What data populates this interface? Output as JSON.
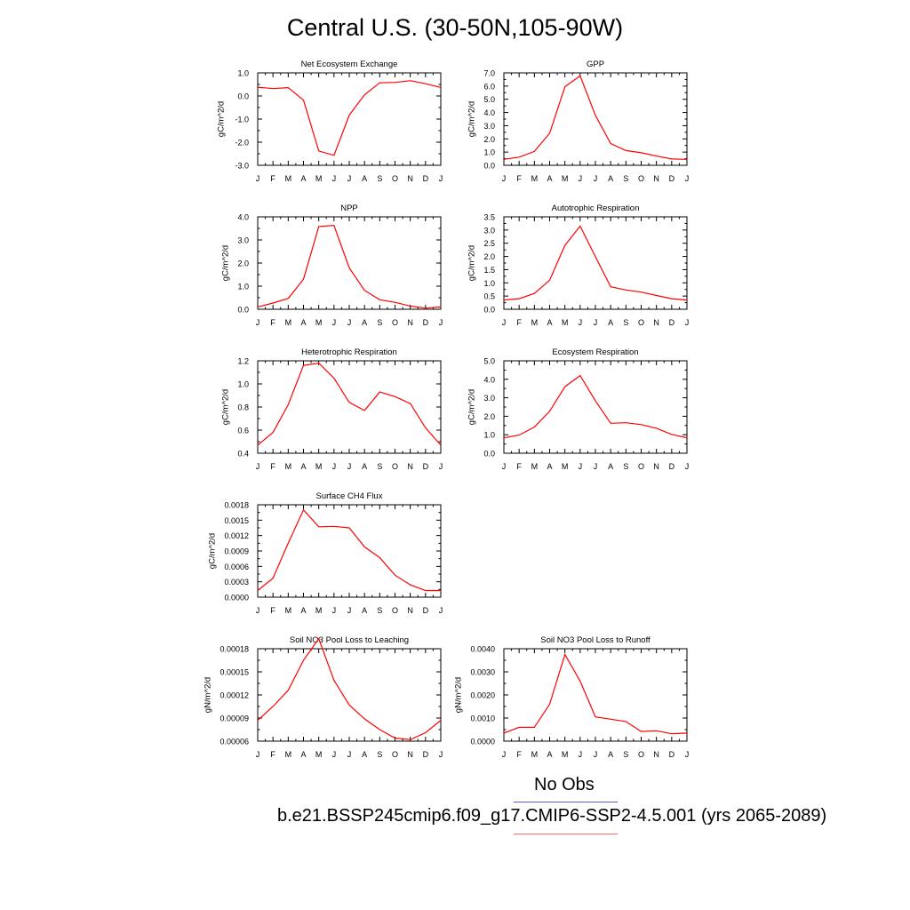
{
  "title": "Central U.S. (30-50N,105-90W)",
  "months": [
    "J",
    "F",
    "M",
    "A",
    "M",
    "J",
    "J",
    "A",
    "S",
    "O",
    "N",
    "D",
    "J"
  ],
  "legend": {
    "obs_label": "No Obs",
    "obs_color": "#5b5bd6",
    "model_label": "b.e21.BSSP245cmip6.f09_g17.CMIP6-SSP2-4.5.001 (yrs 2065-2089)",
    "model_color": "#ff6a6a"
  },
  "line_color": "#ff0000",
  "chart_data": [
    {
      "type": "line",
      "title": "Net Ecosystem Exchange",
      "ylabel": "gC/m^2/d",
      "ylim": [
        -3.0,
        1.0
      ],
      "ytick_values": [
        -3.0,
        -2.0,
        -1.0,
        0.0,
        1.0
      ],
      "yticks": [
        "-3.0",
        "-2.0",
        "-1.0",
        "0.0",
        "1.0"
      ],
      "values": [
        0.38,
        0.32,
        0.36,
        -0.18,
        -2.38,
        -2.57,
        -0.83,
        0.05,
        0.57,
        0.59,
        0.66,
        0.53,
        0.37
      ]
    },
    {
      "type": "line",
      "title": "GPP",
      "ylabel": "gC/m^2/d",
      "ylim": [
        0.0,
        7.0
      ],
      "ytick_values": [
        0,
        1,
        2,
        3,
        4,
        5,
        6,
        7
      ],
      "yticks": [
        "0.0",
        "1.0",
        "2.0",
        "3.0",
        "4.0",
        "5.0",
        "6.0",
        "7.0"
      ],
      "values": [
        0.45,
        0.62,
        1.05,
        2.42,
        5.95,
        6.78,
        3.78,
        1.65,
        1.12,
        0.95,
        0.7,
        0.48,
        0.45
      ]
    },
    {
      "type": "line",
      "title": "NPP",
      "ylabel": "gC/m^2/d",
      "ylim": [
        0.0,
        4.0
      ],
      "ytick_values": [
        0,
        1,
        2,
        3,
        4
      ],
      "yticks": [
        "0.0",
        "1.0",
        "2.0",
        "3.0",
        "4.0"
      ],
      "values": [
        0.1,
        0.27,
        0.47,
        1.3,
        3.58,
        3.63,
        1.79,
        0.82,
        0.41,
        0.3,
        0.14,
        0.05,
        0.1
      ]
    },
    {
      "type": "line",
      "title": "Autotrophic Respiration",
      "ylabel": "gC/m^2/d",
      "ylim": [
        0.0,
        3.5
      ],
      "ytick_values": [
        0,
        0.5,
        1,
        1.5,
        2,
        2.5,
        3,
        3.5
      ],
      "yticks": [
        "0.0",
        "0.5",
        "1.0",
        "1.5",
        "2.0",
        "2.5",
        "3.0",
        "3.5"
      ],
      "values": [
        0.35,
        0.4,
        0.6,
        1.1,
        2.42,
        3.15,
        1.99,
        0.85,
        0.73,
        0.65,
        0.52,
        0.4,
        0.35
      ]
    },
    {
      "type": "line",
      "title": "Heterotrophic Respiration",
      "ylabel": "gC/m^2/d",
      "ylim": [
        0.4,
        1.2
      ],
      "ytick_values": [
        0.4,
        0.6,
        0.8,
        1.0,
        1.2
      ],
      "yticks": [
        "0.4",
        "0.6",
        "0.8",
        "1.0",
        "1.2"
      ],
      "values": [
        0.47,
        0.58,
        0.82,
        1.16,
        1.18,
        1.05,
        0.84,
        0.77,
        0.93,
        0.89,
        0.83,
        0.62,
        0.47
      ]
    },
    {
      "type": "line",
      "title": "Ecosystem Respiration",
      "ylabel": "gC/m^2/d",
      "ylim": [
        0.0,
        5.0
      ],
      "ytick_values": [
        0,
        1,
        2,
        3,
        4,
        5
      ],
      "yticks": [
        "0.0",
        "1.0",
        "2.0",
        "3.0",
        "4.0",
        "5.0"
      ],
      "values": [
        0.83,
        0.98,
        1.42,
        2.27,
        3.6,
        4.2,
        2.83,
        1.62,
        1.65,
        1.55,
        1.35,
        1.02,
        0.83
      ]
    },
    {
      "type": "line",
      "title": "Surface CH4 Flux",
      "ylabel": "gC/m^2/d",
      "ylim": [
        0.0,
        0.0018
      ],
      "ytick_values": [
        0,
        0.0003,
        0.0006,
        0.0009,
        0.0012,
        0.0015,
        0.0018
      ],
      "yticks": [
        "0.0000",
        "0.0003",
        "0.0006",
        "0.0009",
        "0.0012",
        "0.0015",
        "0.0018"
      ],
      "values": [
        0.00013,
        0.00037,
        0.00105,
        0.0017,
        0.00137,
        0.00138,
        0.00135,
        0.00098,
        0.00077,
        0.00043,
        0.00024,
        0.00013,
        0.00013
      ]
    },
    {
      "type": "line",
      "title": "Soil NO3 Pool Loss to Leaching",
      "ylabel": "gN/m^2/d",
      "ylim": [
        6e-05,
        0.00018
      ],
      "ytick_values": [
        6e-05,
        9e-05,
        0.00012,
        0.00015,
        0.00018
      ],
      "yticks": [
        "0.00006",
        "0.00009",
        "0.00012",
        "0.00015",
        "0.00018"
      ],
      "values": [
        8.7e-05,
        0.000105,
        0.000126,
        0.000165,
        0.000193,
        0.000139,
        0.000107,
        8.9e-05,
        7.5e-05,
        6.4e-05,
        6.2e-05,
        7.1e-05,
        8.7e-05
      ]
    },
    {
      "type": "line",
      "title": "Soil NO3 Pool Loss to Runoff",
      "ylabel": "gN/m^2/d",
      "ylim": [
        0.0,
        0.004
      ],
      "ytick_values": [
        0,
        0.001,
        0.002,
        0.003,
        0.004
      ],
      "yticks": [
        "0.0000",
        "0.0010",
        "0.0020",
        "0.0030",
        "0.0040"
      ],
      "values": [
        0.00035,
        0.0006,
        0.0006,
        0.0016,
        0.00375,
        0.0026,
        0.00105,
        0.00095,
        0.00085,
        0.00042,
        0.00045,
        0.00032,
        0.00035
      ]
    }
  ]
}
